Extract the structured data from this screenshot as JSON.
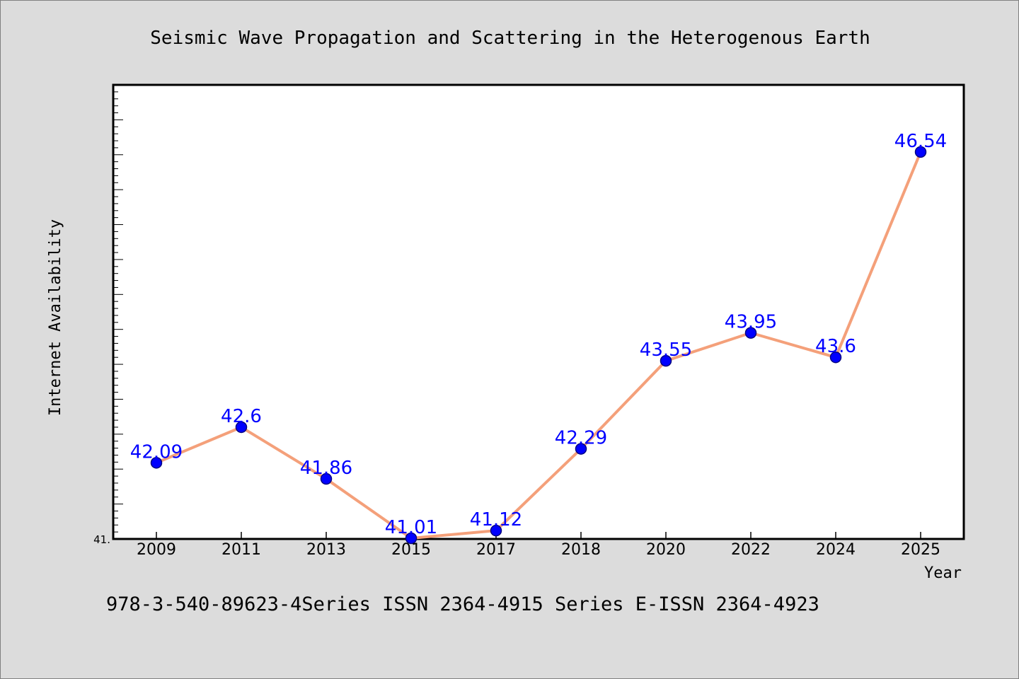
{
  "chart_data": {
    "type": "line",
    "title": "Seismic Wave Propagation and Scattering in the Heterogenous Earth",
    "xlabel": "Year",
    "ylabel": "Internet Availability",
    "categories": [
      "2009",
      "2011",
      "2013",
      "2015",
      "2017",
      "2018",
      "2020",
      "2022",
      "2024",
      "2025"
    ],
    "series": [
      {
        "values": [
          42.09,
          42.6,
          41.86,
          41.01,
          41.12,
          42.29,
          43.55,
          43.95,
          43.6,
          46.54
        ],
        "data_labels": [
          "42.09",
          "42.6",
          "41.86",
          "41.01",
          "41.12",
          "42.29",
          "43.55",
          "43.95",
          "43.6",
          "46.54"
        ]
      }
    ],
    "ylim": [
      41.0,
      47.5
    ],
    "y_tick_labels": [
      "41."
    ],
    "grid": false,
    "legend": "none",
    "colors": {
      "line": "#f4a07a",
      "marker": "#0000ff",
      "marker_edge": "#000080",
      "data_label": "#0000ff",
      "plot_bg": "#ffffff",
      "page_bg": "#dcdcdc"
    },
    "footer": "978-3-540-89623-4Series ISSN 2364-4915 Series E-ISSN 2364-4923"
  }
}
